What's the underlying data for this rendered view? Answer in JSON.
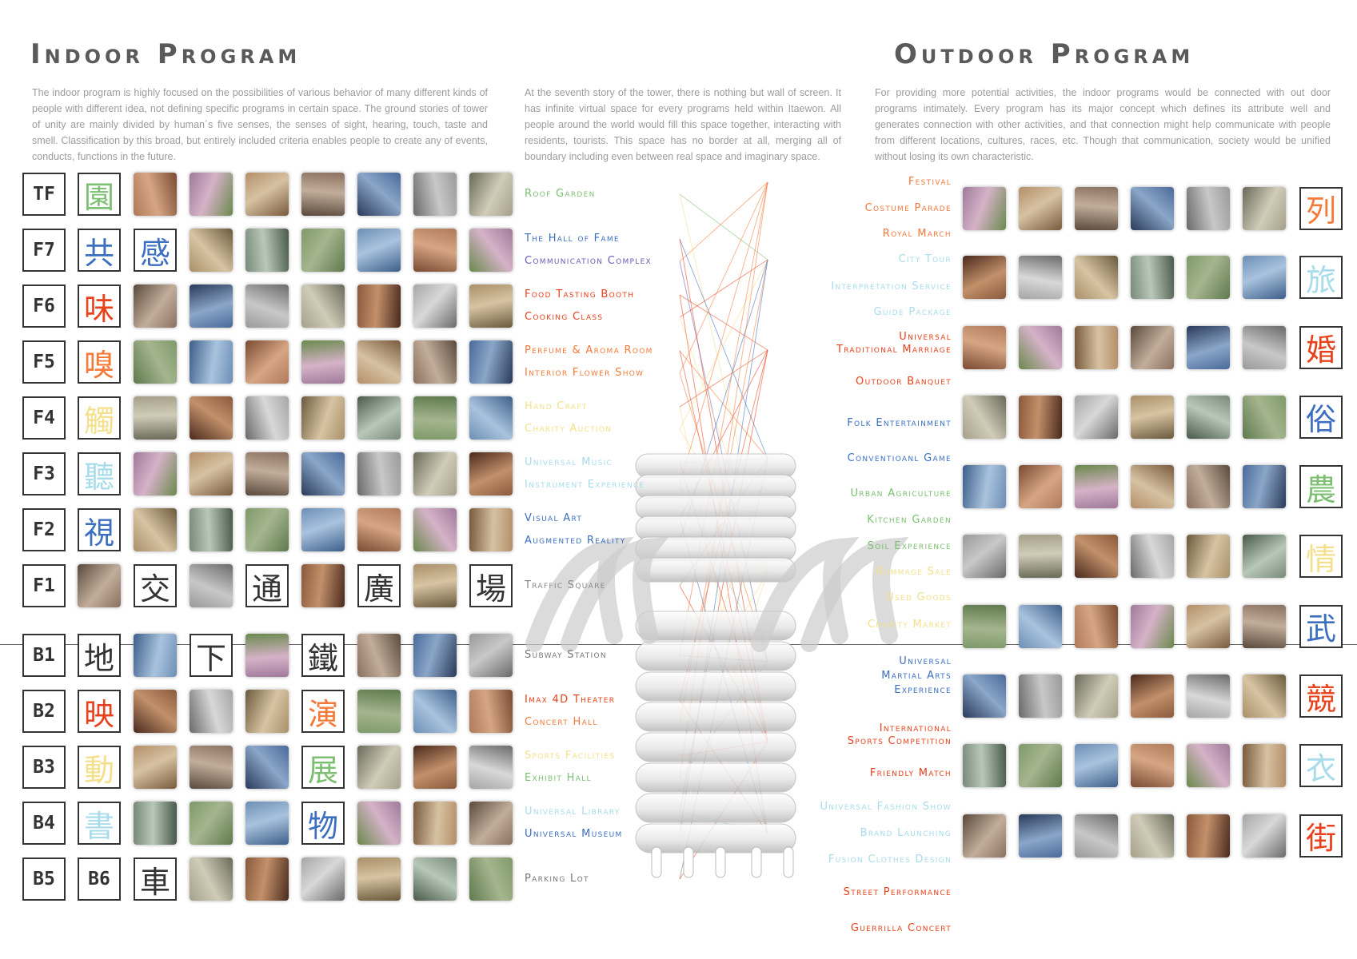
{
  "indoor": {
    "title": "Indoor Program",
    "desc": "The indoor program is highly focused on the possibilities of various behavior of many different kinds of people with different idea, not defining specific programs in certain space. The ground stories of tower of unity are mainly divided by human´s five senses, the senses of sight, hearing, touch, taste and smell. Classification by this broad, but entirely included criteria enables people to create any of events, conducts, functions in the future."
  },
  "middle": {
    "desc": "At the seventh story of the tower, there is nothing but wall of screen. It has infinite virtual space for every programs held within Itaewon. All people around the world would fill this space together, interacting with residents, tourists. This space has no border at all, merging all of boundary including even between real space and imaginary space."
  },
  "outdoor": {
    "title": "Outdoor Program",
    "desc": "For providing more potential activities, the indoor programs would be connected with out door programs intimately. Every program has its major concept which defines its attribute well and generates connection with other activities, and that connection might help communicate with people from different locations, cultures, races, etc. Though that communication, society would be unified without losing its own characteristic."
  },
  "colors": {
    "green": "#7cbf72",
    "blue": "#3c6fc0",
    "red": "#e8421c",
    "orange": "#f47a3a",
    "yellow": "#f4e08a",
    "lightblue": "#a8dcea",
    "gray": "#6a6a6a",
    "darkred": "#c33",
    "olive": "#9acd8c"
  },
  "floors": [
    {
      "label": "TF",
      "kanji": [
        {
          "ch": "園",
          "col": "#7cbf72",
          "pos": 1
        }
      ],
      "labels": [
        {
          "t": "Roof Garden",
          "c": "#7cbf72"
        }
      ]
    },
    {
      "label": "F7",
      "kanji": [
        {
          "ch": "共",
          "col": "#3c6fc0",
          "pos": 1
        },
        {
          "ch": "感",
          "col": "#3c6fc0",
          "pos": 2
        }
      ],
      "labels": [
        {
          "t": "The Hall of Fame",
          "c": "#3c6fc0"
        },
        {
          "t": "Communication Complex",
          "c": "#6a5bb8"
        }
      ]
    },
    {
      "label": "F6",
      "kanji": [
        {
          "ch": "味",
          "col": "#e8421c",
          "pos": 1
        }
      ],
      "labels": [
        {
          "t": "Food Tasting Booth",
          "c": "#e8421c"
        },
        {
          "t": "Cooking Class",
          "c": "#e8421c"
        }
      ]
    },
    {
      "label": "F5",
      "kanji": [
        {
          "ch": "嗅",
          "col": "#f47a3a",
          "pos": 1
        }
      ],
      "labels": [
        {
          "t": "Perfume & Aroma Room",
          "c": "#f47a3a"
        },
        {
          "t": "Interior Flower Show",
          "c": "#f47a3a"
        }
      ]
    },
    {
      "label": "F4",
      "kanji": [
        {
          "ch": "觸",
          "col": "#f4e08a",
          "pos": 1
        }
      ],
      "labels": [
        {
          "t": "Hand Craft",
          "c": "#f4e08a"
        },
        {
          "t": "Charity Auction",
          "c": "#f4e08a"
        }
      ]
    },
    {
      "label": "F3",
      "kanji": [
        {
          "ch": "聽",
          "col": "#a8dcea",
          "pos": 1
        }
      ],
      "labels": [
        {
          "t": "Universal Music",
          "c": "#a8dcea"
        },
        {
          "t": "Instrument Experience",
          "c": "#a8dcea"
        }
      ]
    },
    {
      "label": "F2",
      "kanji": [
        {
          "ch": "視",
          "col": "#3c6fc0",
          "pos": 1
        }
      ],
      "labels": [
        {
          "t": "Visual Art",
          "c": "#3c6fc0"
        },
        {
          "t": "Augmented Reality",
          "c": "#3c6fc0"
        }
      ]
    },
    {
      "label": "F1",
      "kanji": [
        {
          "ch": "交",
          "col": "#333",
          "pos": 2
        },
        {
          "ch": "通",
          "col": "#333",
          "pos": 4
        },
        {
          "ch": "廣",
          "col": "#333",
          "pos": 6
        },
        {
          "ch": "場",
          "col": "#333",
          "pos": 8
        }
      ],
      "labels": [
        {
          "t": "Traffic Square",
          "c": "#888"
        }
      ]
    },
    {
      "label": "B1",
      "kanji": [
        {
          "ch": "地",
          "col": "#333",
          "pos": 1
        },
        {
          "ch": "下",
          "col": "#333",
          "pos": 3
        },
        {
          "ch": "鐵",
          "col": "#333",
          "pos": 5
        }
      ],
      "labels": [
        {
          "t": "Subway Station",
          "c": "#777"
        }
      ]
    },
    {
      "label": "B2",
      "kanji": [
        {
          "ch": "映",
          "col": "#e8421c",
          "pos": 1
        },
        {
          "ch": "演",
          "col": "#f47a3a",
          "pos": 5
        }
      ],
      "labels": [
        {
          "t": "Imax 4D Theater",
          "c": "#e8421c"
        },
        {
          "t": "Concert Hall",
          "c": "#f47a3a"
        }
      ]
    },
    {
      "label": "B3",
      "kanji": [
        {
          "ch": "動",
          "col": "#f4e08a",
          "pos": 1
        },
        {
          "ch": "展",
          "col": "#7cbf72",
          "pos": 5
        }
      ],
      "labels": [
        {
          "t": "Sports Facilities",
          "c": "#f4e08a"
        },
        {
          "t": "Exhibit Hall",
          "c": "#7cbf72"
        }
      ]
    },
    {
      "label": "B4",
      "kanji": [
        {
          "ch": "書",
          "col": "#a8dcea",
          "pos": 1
        },
        {
          "ch": "物",
          "col": "#3c6fc0",
          "pos": 5
        }
      ],
      "labels": [
        {
          "t": "Universal Library",
          "c": "#a8dcea"
        },
        {
          "t": "Universal Museum",
          "c": "#3c6fc0"
        }
      ]
    },
    {
      "label": "B5",
      "kanji": [
        {
          "ch": "B6",
          "col": "#333",
          "pos": 1,
          "mono": true
        },
        {
          "ch": "車",
          "col": "#333",
          "pos": 2
        }
      ],
      "labels": [
        {
          "t": "Parking Lot",
          "c": "#777"
        }
      ]
    }
  ],
  "outdoor_rows": [
    {
      "kanji": "列",
      "col": "#f47a3a",
      "labels": [
        {
          "t": "Festival",
          "c": "#f47a3a"
        },
        {
          "t": "Costume Parade",
          "c": "#f47a3a"
        },
        {
          "t": "Royal March",
          "c": "#f47a3a"
        }
      ]
    },
    {
      "kanji": "旅",
      "col": "#a8dcea",
      "labels": [
        {
          "t": "City Tour",
          "c": "#a8dcea"
        },
        {
          "t": "Interpretation Service",
          "c": "#a8dcea"
        },
        {
          "t": "Guide Package",
          "c": "#a8dcea"
        }
      ]
    },
    {
      "kanji": "婚",
      "col": "#e8421c",
      "labels": [
        {
          "t": "Universal",
          "c": "#e8421c"
        },
        {
          "t": "Traditional Marriage",
          "c": "#e8421c"
        },
        {
          "t": "Outdoor Banquet",
          "c": "#e8421c"
        }
      ]
    },
    {
      "kanji": "俗",
      "col": "#3c6fc0",
      "labels": [
        {
          "t": "Folk Entertainment",
          "c": "#3c6fc0"
        },
        {
          "t": "Conventioanl Game",
          "c": "#3c6fc0"
        }
      ]
    },
    {
      "kanji": "農",
      "col": "#7cbf72",
      "labels": [
        {
          "t": "Urban Agriculture",
          "c": "#7cbf72"
        },
        {
          "t": "Kitchen Garden",
          "c": "#7cbf72"
        },
        {
          "t": "Soil Experience",
          "c": "#7cbf72"
        }
      ]
    },
    {
      "kanji": "情",
      "col": "#f4e08a",
      "labels": [
        {
          "t": "Rummage Sale",
          "c": "#f4e08a"
        },
        {
          "t": "Used Goods",
          "c": "#f4e08a"
        },
        {
          "t": "Charity Market",
          "c": "#f4e08a"
        }
      ]
    },
    {
      "kanji": "武",
      "col": "#3c6fc0",
      "labels": [
        {
          "t": "Universal",
          "c": "#3c6fc0"
        },
        {
          "t": "Martial Arts",
          "c": "#3c6fc0"
        },
        {
          "t": "Experience",
          "c": "#3c6fc0"
        }
      ]
    },
    {
      "kanji": "競",
      "col": "#e8421c",
      "labels": [
        {
          "t": "International",
          "c": "#e8421c"
        },
        {
          "t": "Sports Competition",
          "c": "#e8421c"
        },
        {
          "t": "Friendly Match",
          "c": "#e8421c"
        }
      ]
    },
    {
      "kanji": "衣",
      "col": "#a8dcea",
      "labels": [
        {
          "t": "Universal Fashion Show",
          "c": "#a8dcea"
        },
        {
          "t": "Brand Launching",
          "c": "#a8dcea"
        },
        {
          "t": "Fusion Clothes Design",
          "c": "#a8dcea"
        }
      ]
    },
    {
      "kanji": "街",
      "col": "#e8421c",
      "labels": [
        {
          "t": "Street Performance",
          "c": "#e8421c"
        },
        {
          "t": "Guerrilla Concert",
          "c": "#e8421c"
        }
      ]
    }
  ]
}
